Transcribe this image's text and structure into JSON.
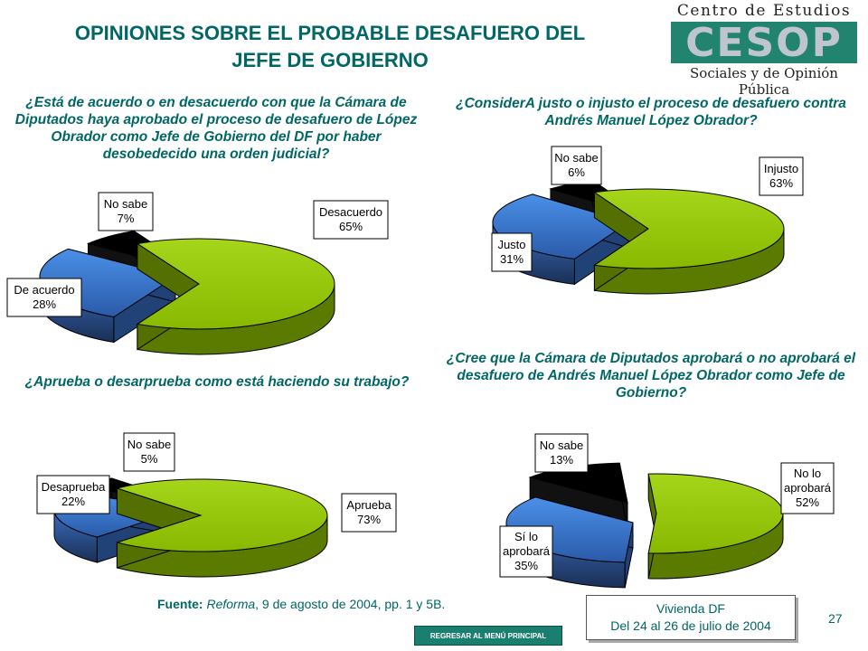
{
  "header": {
    "title_line1": "OPINIONES SOBRE EL PROBABLE DESAFUERO DEL",
    "title_line2": "JEFE DE GOBIERNO"
  },
  "logo": {
    "line1": "Centro de Estudios",
    "wordmark": "CESOP",
    "line3": "Sociales y de Opinión Pública"
  },
  "chart_data": [
    {
      "type": "pie",
      "title": "¿Está de acuerdo o en desacuerdo con que la Cámara de Diputados haya aprobado el proceso de desafuero de López Obrador como Jefe de Gobierno del DF por haber desobedecido una orden judicial?",
      "slices": [
        {
          "label": "Desacuerdo",
          "value": 65,
          "value_label": "65%",
          "color": "#99cc00"
        },
        {
          "label": "De acuerdo",
          "value": 28,
          "value_label": "28%",
          "color": "#3c78d8"
        },
        {
          "label": "No sabe",
          "value": 7,
          "value_label": "7%",
          "color": "#000000"
        }
      ]
    },
    {
      "type": "pie",
      "title": "¿ConsiderA justo o injusto el proceso de desafuero contra Andrés Manuel López Obrador?",
      "slices": [
        {
          "label": "Injusto",
          "value": 63,
          "value_label": "63%",
          "color": "#99cc00"
        },
        {
          "label": "Justo",
          "value": 31,
          "value_label": "31%",
          "color": "#3c78d8"
        },
        {
          "label": "No sabe",
          "value": 6,
          "value_label": "6%",
          "color": "#000000"
        }
      ]
    },
    {
      "type": "pie",
      "title": "¿Aprueba o desarprueba como está haciendo su trabajo?",
      "slices": [
        {
          "label": "Aprueba",
          "value": 73,
          "value_label": "73%",
          "color": "#99cc00"
        },
        {
          "label": "Desaprueba",
          "value": 22,
          "value_label": "22%",
          "color": "#3c78d8"
        },
        {
          "label": "No sabe",
          "value": 5,
          "value_label": "5%",
          "color": "#000000"
        }
      ]
    },
    {
      "type": "pie",
      "title": "¿Cree que la Cámara de Diputados aprobará o no aprobará el desafuero de Andrés Manuel López Obrador como Jefe de Gobierno?",
      "slices": [
        {
          "label": "No lo aprobará",
          "value": 52,
          "value_label": "52%",
          "color": "#99cc00"
        },
        {
          "label": "Sí lo aprobará",
          "value": 35,
          "value_label": "35%",
          "color": "#3c78d8"
        },
        {
          "label": "No sabe",
          "value": 13,
          "value_label": "13%",
          "color": "#000000"
        }
      ]
    }
  ],
  "footer": {
    "source_label": "Fuente:",
    "source_pub": "Reforma",
    "source_rest": ", 9 de agosto de 2004, pp. 1 y 5B.",
    "survey_line1": "Vivienda DF",
    "survey_line2": "Del 24 al 26 de julio de 2004",
    "page_number": "27",
    "back_button": "REGRESAR AL MENÚ PRINCIPAL"
  }
}
